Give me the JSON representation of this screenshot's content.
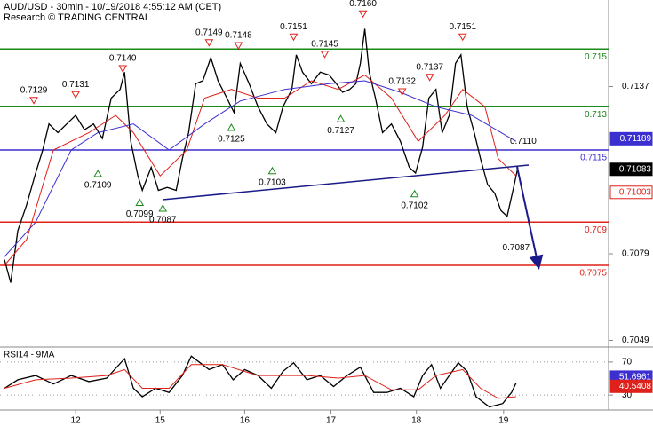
{
  "chart_data": [
    {
      "type": "line",
      "title": "AUD/USD - 30min - 10/19/2018 4:55:12 AM (CET)",
      "subtitle": "Research © TRADING CENTRAL",
      "xlim": [
        0,
        171
      ],
      "ylim": [
        0.7047,
        0.7167
      ],
      "yticks": [
        0.7137,
        0.7079,
        0.7049
      ],
      "series": [
        {
          "color": "#000000",
          "x": [
            1.25,
            3,
            5,
            7.5,
            10,
            12,
            13.75,
            16.25,
            18.75,
            21.25,
            23.75,
            26.25,
            28.75,
            31.25,
            33.75,
            35,
            36.75,
            38.75,
            40,
            42.5,
            44.5,
            47,
            49.5,
            51.25,
            53,
            55,
            57,
            59.25,
            61.25,
            63.75,
            65.75,
            67.5,
            70,
            72.5,
            75,
            77.5,
            79.5,
            82,
            83.25,
            85,
            87.5,
            90,
            92.5,
            94.5,
            96.25,
            98.25,
            100,
            101.25,
            102.5,
            103.75,
            105.5,
            107.5,
            110,
            112.5,
            115,
            116.75,
            118.75,
            120.5,
            122.5,
            124.25,
            126.25,
            128,
            129.5,
            131.25,
            133.25,
            135,
            137,
            139,
            140.75,
            142.5,
            144.5,
            145.5
          ],
          "values": [
            0.7077,
            0.7069,
            0.7087,
            0.7096,
            0.7107,
            0.7115,
            0.7124,
            0.7121,
            0.7124,
            0.7127,
            0.7122,
            0.7124,
            0.7119,
            0.7133,
            0.7136,
            0.7142,
            0.7118,
            0.7106,
            0.7101,
            0.7109,
            0.7101,
            0.7102,
            0.7101,
            0.7112,
            0.7121,
            0.7138,
            0.7139,
            0.7147,
            0.7139,
            0.7133,
            0.7128,
            0.7145,
            0.7138,
            0.713,
            0.7124,
            0.7121,
            0.713,
            0.7136,
            0.7148,
            0.7142,
            0.7138,
            0.7142,
            0.7141,
            0.7138,
            0.7135,
            0.7136,
            0.7138,
            0.7145,
            0.7157,
            0.7142,
            0.7133,
            0.7121,
            0.7124,
            0.7118,
            0.7109,
            0.7107,
            0.7116,
            0.7133,
            0.7136,
            0.7121,
            0.7127,
            0.7145,
            0.7148,
            0.713,
            0.7121,
            0.7112,
            0.7103,
            0.71,
            0.7094,
            0.7092,
            0.7103,
            0.7109
          ]
        },
        {
          "color": "#e0201a",
          "x": [
            1.25,
            7.5,
            15,
            25,
            32.5,
            37.5,
            45,
            52.5,
            57.5,
            65,
            72.5,
            80,
            87.5,
            95,
            102.5,
            110,
            117.5,
            125,
            130,
            136.25,
            140,
            145
          ],
          "values": [
            0.7075,
            0.7084,
            0.7115,
            0.7121,
            0.7127,
            0.7121,
            0.7106,
            0.7115,
            0.7133,
            0.7136,
            0.7133,
            0.7133,
            0.7139,
            0.7136,
            0.7141,
            0.7133,
            0.7118,
            0.7127,
            0.7136,
            0.713,
            0.7112,
            0.7106
          ]
        },
        {
          "color": "#3b2fd0",
          "x": [
            1.25,
            10,
            20,
            27.5,
            37.5,
            47.5,
            57.5,
            67.5,
            80,
            92.5,
            102.5,
            112.5,
            122.5,
            132.5,
            145
          ],
          "values": [
            0.7078,
            0.709,
            0.7115,
            0.7121,
            0.7124,
            0.7115,
            0.7124,
            0.7132,
            0.7136,
            0.7138,
            0.7139,
            0.7135,
            0.713,
            0.7127,
            0.7118
          ]
        }
      ],
      "levels": [
        {
          "value": 0.715,
          "color": "#1a8a1a"
        },
        {
          "value": 0.713,
          "color": "#1a8a1a"
        },
        {
          "value": 0.7115,
          "color": "#3b2fd0"
        },
        {
          "value": 0.709,
          "color": "#e0201a"
        },
        {
          "value": 0.7075,
          "color": "#e0201a"
        }
      ],
      "price_boxes": [
        {
          "value": 0.71189,
          "fill": "#3b2fd0",
          "text_color": "#ffffff"
        },
        {
          "value": 0.71083,
          "fill": "#000000",
          "text_color": "#ffffff"
        },
        {
          "value": 0.71003,
          "fill": "#ffffff",
          "text_color": "#e0201a"
        }
      ],
      "highs": [
        {
          "x": 9.5,
          "y": 0.7132,
          "label": "0.7129"
        },
        {
          "x": 21.25,
          "y": 0.7134,
          "label": "0.7131"
        },
        {
          "x": 34.5,
          "y": 0.7143,
          "label": "0.7140"
        },
        {
          "x": 58.75,
          "y": 0.7152,
          "label": "0.7149"
        },
        {
          "x": 67,
          "y": 0.7151,
          "label": "0.7148"
        },
        {
          "x": 82.5,
          "y": 0.7154,
          "label": "0.7151"
        },
        {
          "x": 91.25,
          "y": 0.7148,
          "label": "0.7145"
        },
        {
          "x": 102,
          "y": 0.7162,
          "label": "0.7160"
        },
        {
          "x": 113,
          "y": 0.7135,
          "label": "0.7132"
        },
        {
          "x": 120.75,
          "y": 0.714,
          "label": "0.7137"
        },
        {
          "x": 130,
          "y": 0.7154,
          "label": "0.7151"
        }
      ],
      "lows": [
        {
          "x": 27.5,
          "y": 0.7107,
          "label": "0.7109"
        },
        {
          "x": 39.25,
          "y": 0.7097,
          "label": "0.7099"
        },
        {
          "x": 45.75,
          "y": 0.7095,
          "label": "0.7087"
        },
        {
          "x": 65,
          "y": 0.7123,
          "label": "0.7125"
        },
        {
          "x": 76.5,
          "y": 0.7108,
          "label": "0.7103"
        },
        {
          "x": 95.75,
          "y": 0.7126,
          "label": "0.7127"
        },
        {
          "x": 116.5,
          "y": 0.71,
          "label": "0.7102"
        }
      ],
      "notes": [
        {
          "x": 147,
          "y": 0.7118,
          "label": "0.7110"
        },
        {
          "x": 145,
          "y": 0.7081,
          "label": "0.7087"
        }
      ]
    },
    {
      "type": "line",
      "title": "RSI14 - 9MA",
      "xlim": [
        0,
        171
      ],
      "xticks": [
        {
          "value": 21.25,
          "label": "12"
        },
        {
          "value": 45,
          "label": "15"
        },
        {
          "value": 68.75,
          "label": "16"
        },
        {
          "value": 93,
          "label": "17"
        },
        {
          "value": 117,
          "label": "18"
        },
        {
          "value": 141.5,
          "label": "19"
        }
      ],
      "ylim": [
        14,
        86
      ],
      "yticks": [
        30,
        70
      ],
      "series": [
        {
          "color": "#000000",
          "x": [
            1.25,
            5,
            10,
            15,
            20,
            25,
            30,
            35,
            37.5,
            40,
            43.75,
            47.5,
            51.25,
            53.75,
            56.25,
            58.75,
            62.5,
            65.5,
            68.75,
            72.5,
            76.25,
            79.5,
            82.5,
            86.25,
            90,
            93.75,
            97.5,
            101.25,
            105,
            108.75,
            112.5,
            116.25,
            118.75,
            121.25,
            123.75,
            126.25,
            128.75,
            131.25,
            133.75,
            137.5,
            141.25,
            143.75,
            145
          ],
          "values": [
            38.2,
            48.5,
            53.6,
            43.3,
            53.6,
            46.4,
            50.5,
            74.1,
            38.2,
            28,
            38.2,
            33.1,
            53.6,
            77.2,
            69,
            60.8,
            66.9,
            48.5,
            60.8,
            53.6,
            38.2,
            58.7,
            69,
            48.5,
            53.6,
            40.3,
            53.6,
            63.8,
            33.1,
            33.1,
            38.2,
            28,
            53.6,
            66.9,
            38.2,
            53.6,
            69,
            58.7,
            28,
            15.6,
            19.7,
            33.1,
            44.4
          ]
        },
        {
          "color": "#e0201a",
          "x": [
            1.25,
            10,
            20,
            30,
            35,
            40,
            47.5,
            53.75,
            62.5,
            72.5,
            80,
            86.25,
            95,
            102.5,
            110,
            117.5,
            122.5,
            130,
            135,
            140,
            145
          ],
          "values": [
            38.2,
            48.5,
            50.5,
            53.6,
            60.8,
            38.2,
            38.2,
            66.9,
            66.9,
            53.6,
            53.6,
            53.6,
            50.5,
            53.6,
            36.2,
            36.2,
            53.6,
            60.8,
            38.2,
            25.9,
            28
          ]
        }
      ],
      "price_boxes": [
        {
          "value": 51.6961,
          "fill": "#3b2fd0",
          "text_color": "#ffffff"
        },
        {
          "value": 40.5408,
          "fill": "#e0201a",
          "text_color": "#ffffff"
        }
      ]
    }
  ]
}
